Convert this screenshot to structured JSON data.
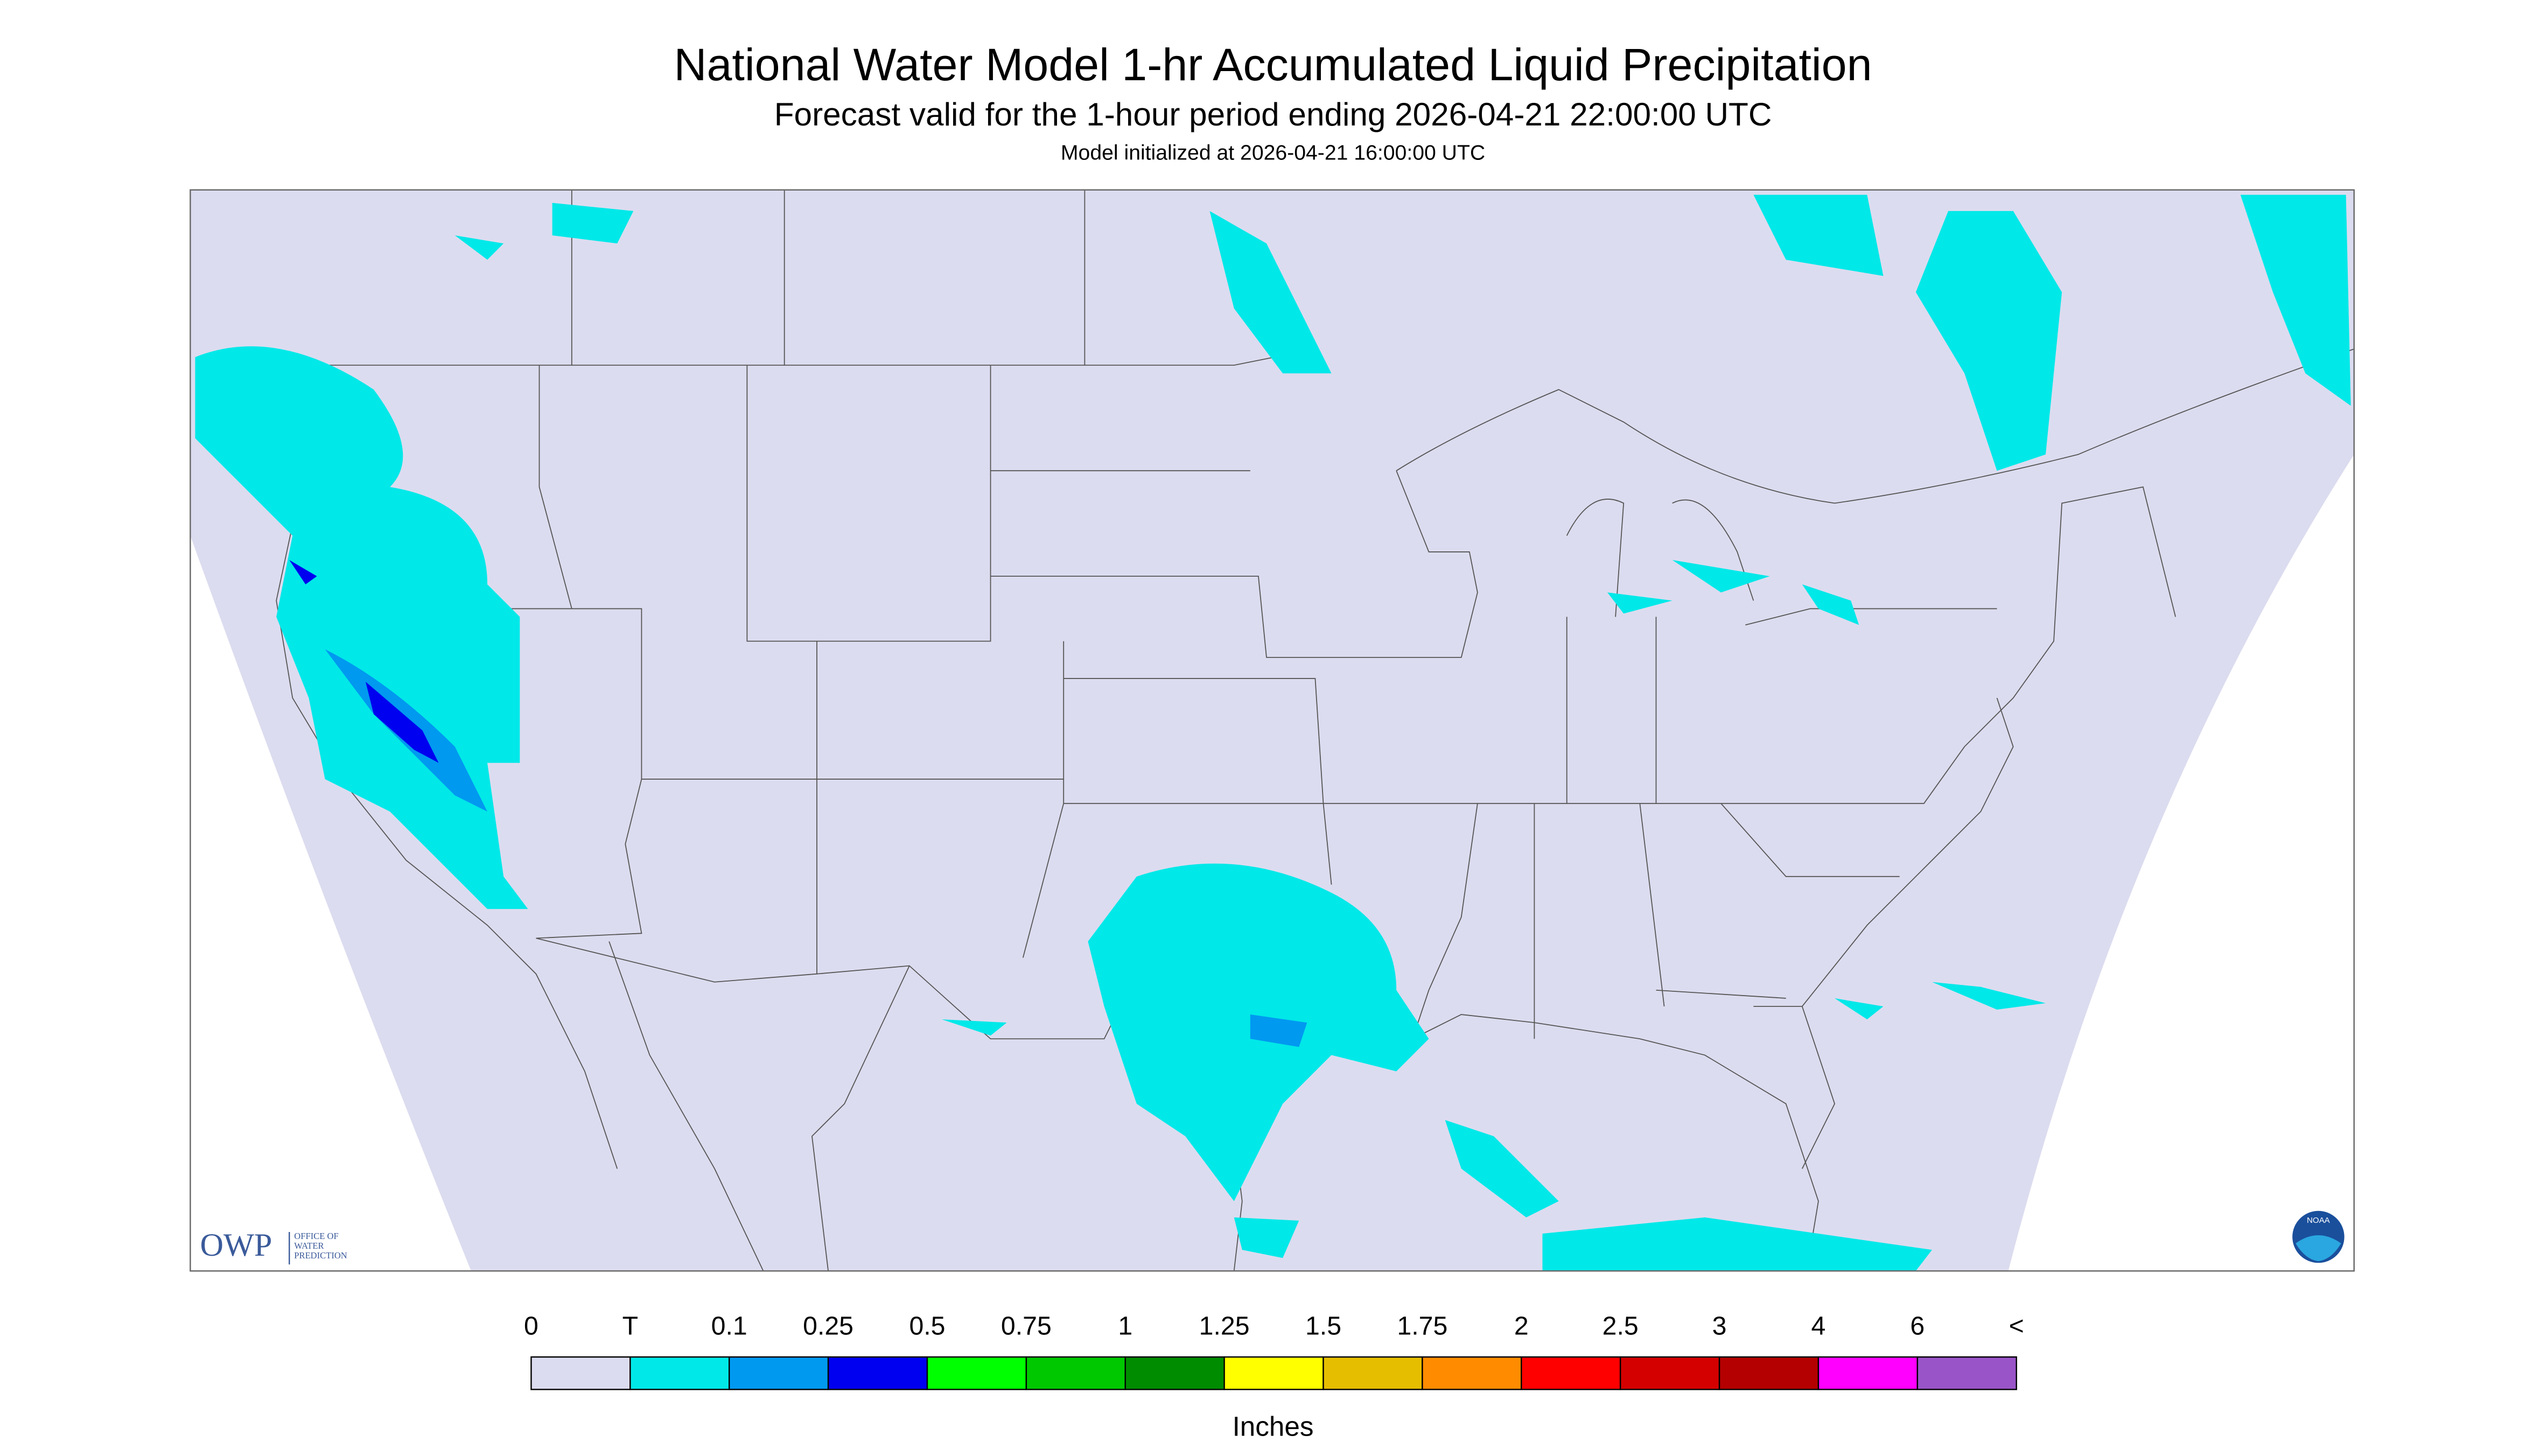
{
  "header": {
    "title": "National Water Model 1-hr Accumulated Liquid Precipitation",
    "subtitle": "Forecast valid for the 1-hour period ending 2026-04-21 22:00:00 UTC",
    "note": "Model initialized at 2026-04-21 16:00:00 UTC"
  },
  "legend": {
    "labels": [
      "0",
      "T",
      "0.1",
      "0.25",
      "0.5",
      "0.75",
      "1",
      "1.25",
      "1.5",
      "1.75",
      "2",
      "2.5",
      "3",
      "4",
      "6",
      "<"
    ],
    "colors": [
      "#dcdcf0",
      "#00e8e8",
      "#0099f0",
      "#0000f0",
      "#00ff00",
      "#00c800",
      "#008c00",
      "#ffff00",
      "#e6be00",
      "#ff8c00",
      "#ff0000",
      "#d40000",
      "#b40000",
      "#ff00ff",
      "#9955c8"
    ],
    "units": "Inches"
  },
  "logo": {
    "name": "OWP",
    "line1": "OFFICE OF",
    "line2": "WATER",
    "line3": "PREDICTION",
    "badge": "NOAA"
  }
}
